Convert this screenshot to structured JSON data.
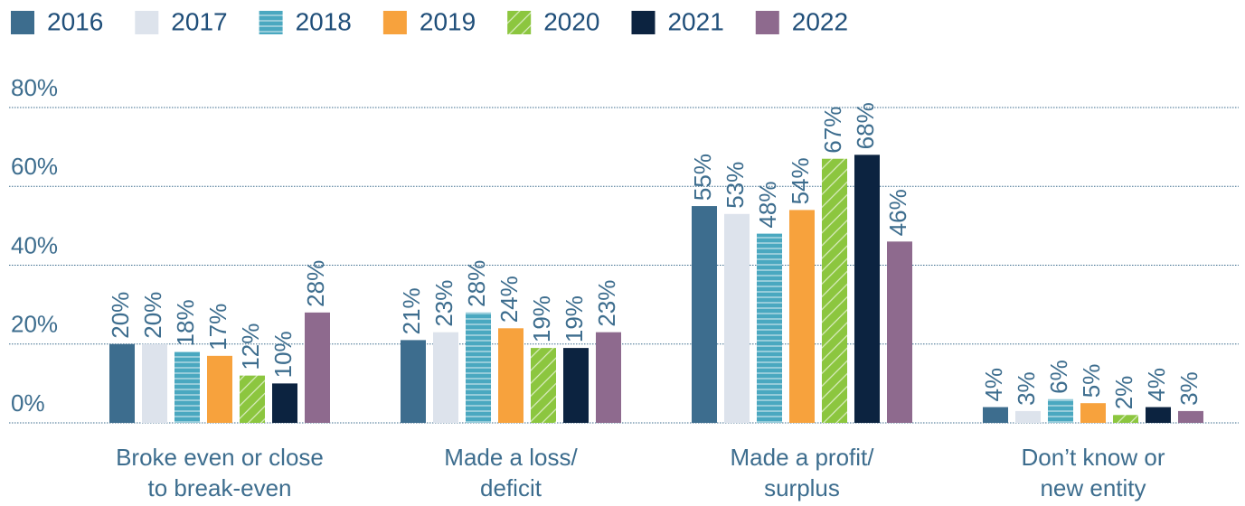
{
  "chart_data": {
    "type": "bar",
    "categories": [
      [
        "Broke even or close",
        "to break-even"
      ],
      [
        "Made a loss/",
        "deficit"
      ],
      [
        "Made a profit/",
        "surplus"
      ],
      [
        "Don’t know or",
        "new entity"
      ]
    ],
    "series": [
      {
        "name": "2016",
        "color": "#3d6d8e",
        "values": [
          20,
          21,
          55,
          4
        ],
        "value_labels": [
          "20%",
          "21%",
          "55%",
          "4%"
        ]
      },
      {
        "name": "2017",
        "color": "#dde3ec",
        "values": [
          20,
          23,
          53,
          3
        ],
        "value_labels": [
          "20%",
          "23%",
          "53%",
          "3%"
        ]
      },
      {
        "name": "2018",
        "color": "#4aa8c0",
        "hatch": "horizontal",
        "values": [
          18,
          28,
          48,
          6
        ],
        "value_labels": [
          "18%",
          "28%",
          "48%",
          "6%"
        ]
      },
      {
        "name": "2019",
        "color": "#f7a23d",
        "values": [
          17,
          24,
          54,
          5
        ],
        "value_labels": [
          "17%",
          "24%",
          "54%",
          "5%"
        ]
      },
      {
        "name": "2020",
        "color": "#8cc63f",
        "hatch": "diagonal",
        "values": [
          12,
          19,
          67,
          2
        ],
        "value_labels": [
          "12%",
          "19%",
          "67%",
          "2%"
        ]
      },
      {
        "name": "2021",
        "color": "#0c2340",
        "values": [
          10,
          19,
          68,
          4
        ],
        "value_labels": [
          "10%",
          "19%",
          "68%",
          "4%"
        ]
      },
      {
        "name": "2022",
        "color": "#8e6a8e",
        "values": [
          28,
          23,
          46,
          3
        ],
        "value_labels": [
          "28%",
          "23%",
          "46%",
          "3%"
        ]
      }
    ],
    "ylim": [
      0,
      80
    ],
    "yticks": [
      {
        "value": 0,
        "label": "0%"
      },
      {
        "value": 20,
        "label": "20%"
      },
      {
        "value": 40,
        "label": "40%"
      },
      {
        "value": 60,
        "label": "60%"
      },
      {
        "value": 80,
        "label": "80%"
      }
    ],
    "grid": true,
    "legend": "top-left"
  }
}
